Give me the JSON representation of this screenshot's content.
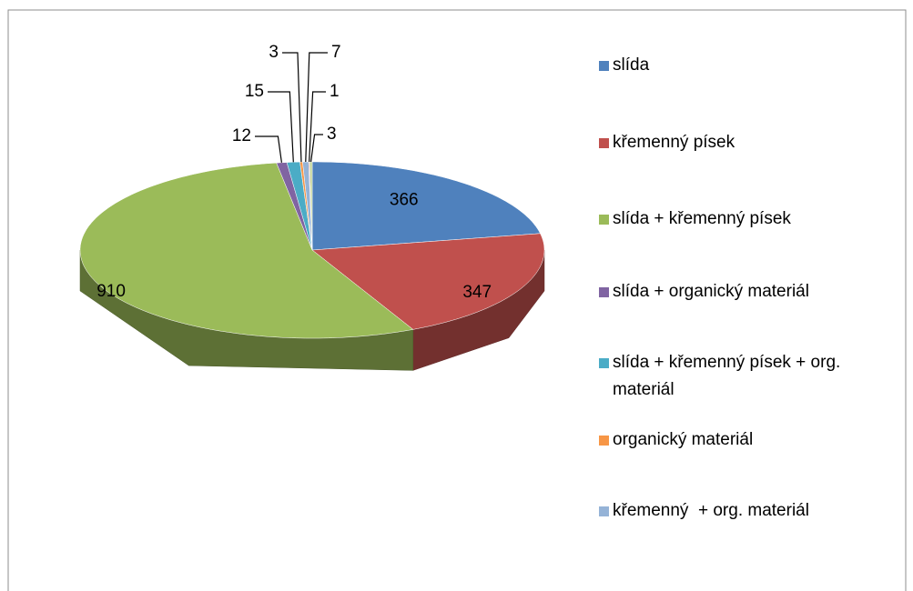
{
  "chart_data": {
    "type": "pie3d",
    "categories": [
      "slída",
      "křemenný písek",
      "slída + křemenný písek",
      "slída + organický materiál",
      "slída + křemenný písek + org. materiál",
      "organický materiál",
      "křemenný  + org. materiál",
      null,
      null
    ],
    "values": [
      366,
      347,
      910,
      12,
      15,
      3,
      7,
      1,
      3
    ],
    "colors": [
      "#4f81bd",
      "#c0504d",
      "#9bbb59",
      "#8064a2",
      "#4bacc6",
      "#f79646",
      "#95b3d7",
      "#d99694",
      "#c3d69b"
    ],
    "legend": "right"
  }
}
